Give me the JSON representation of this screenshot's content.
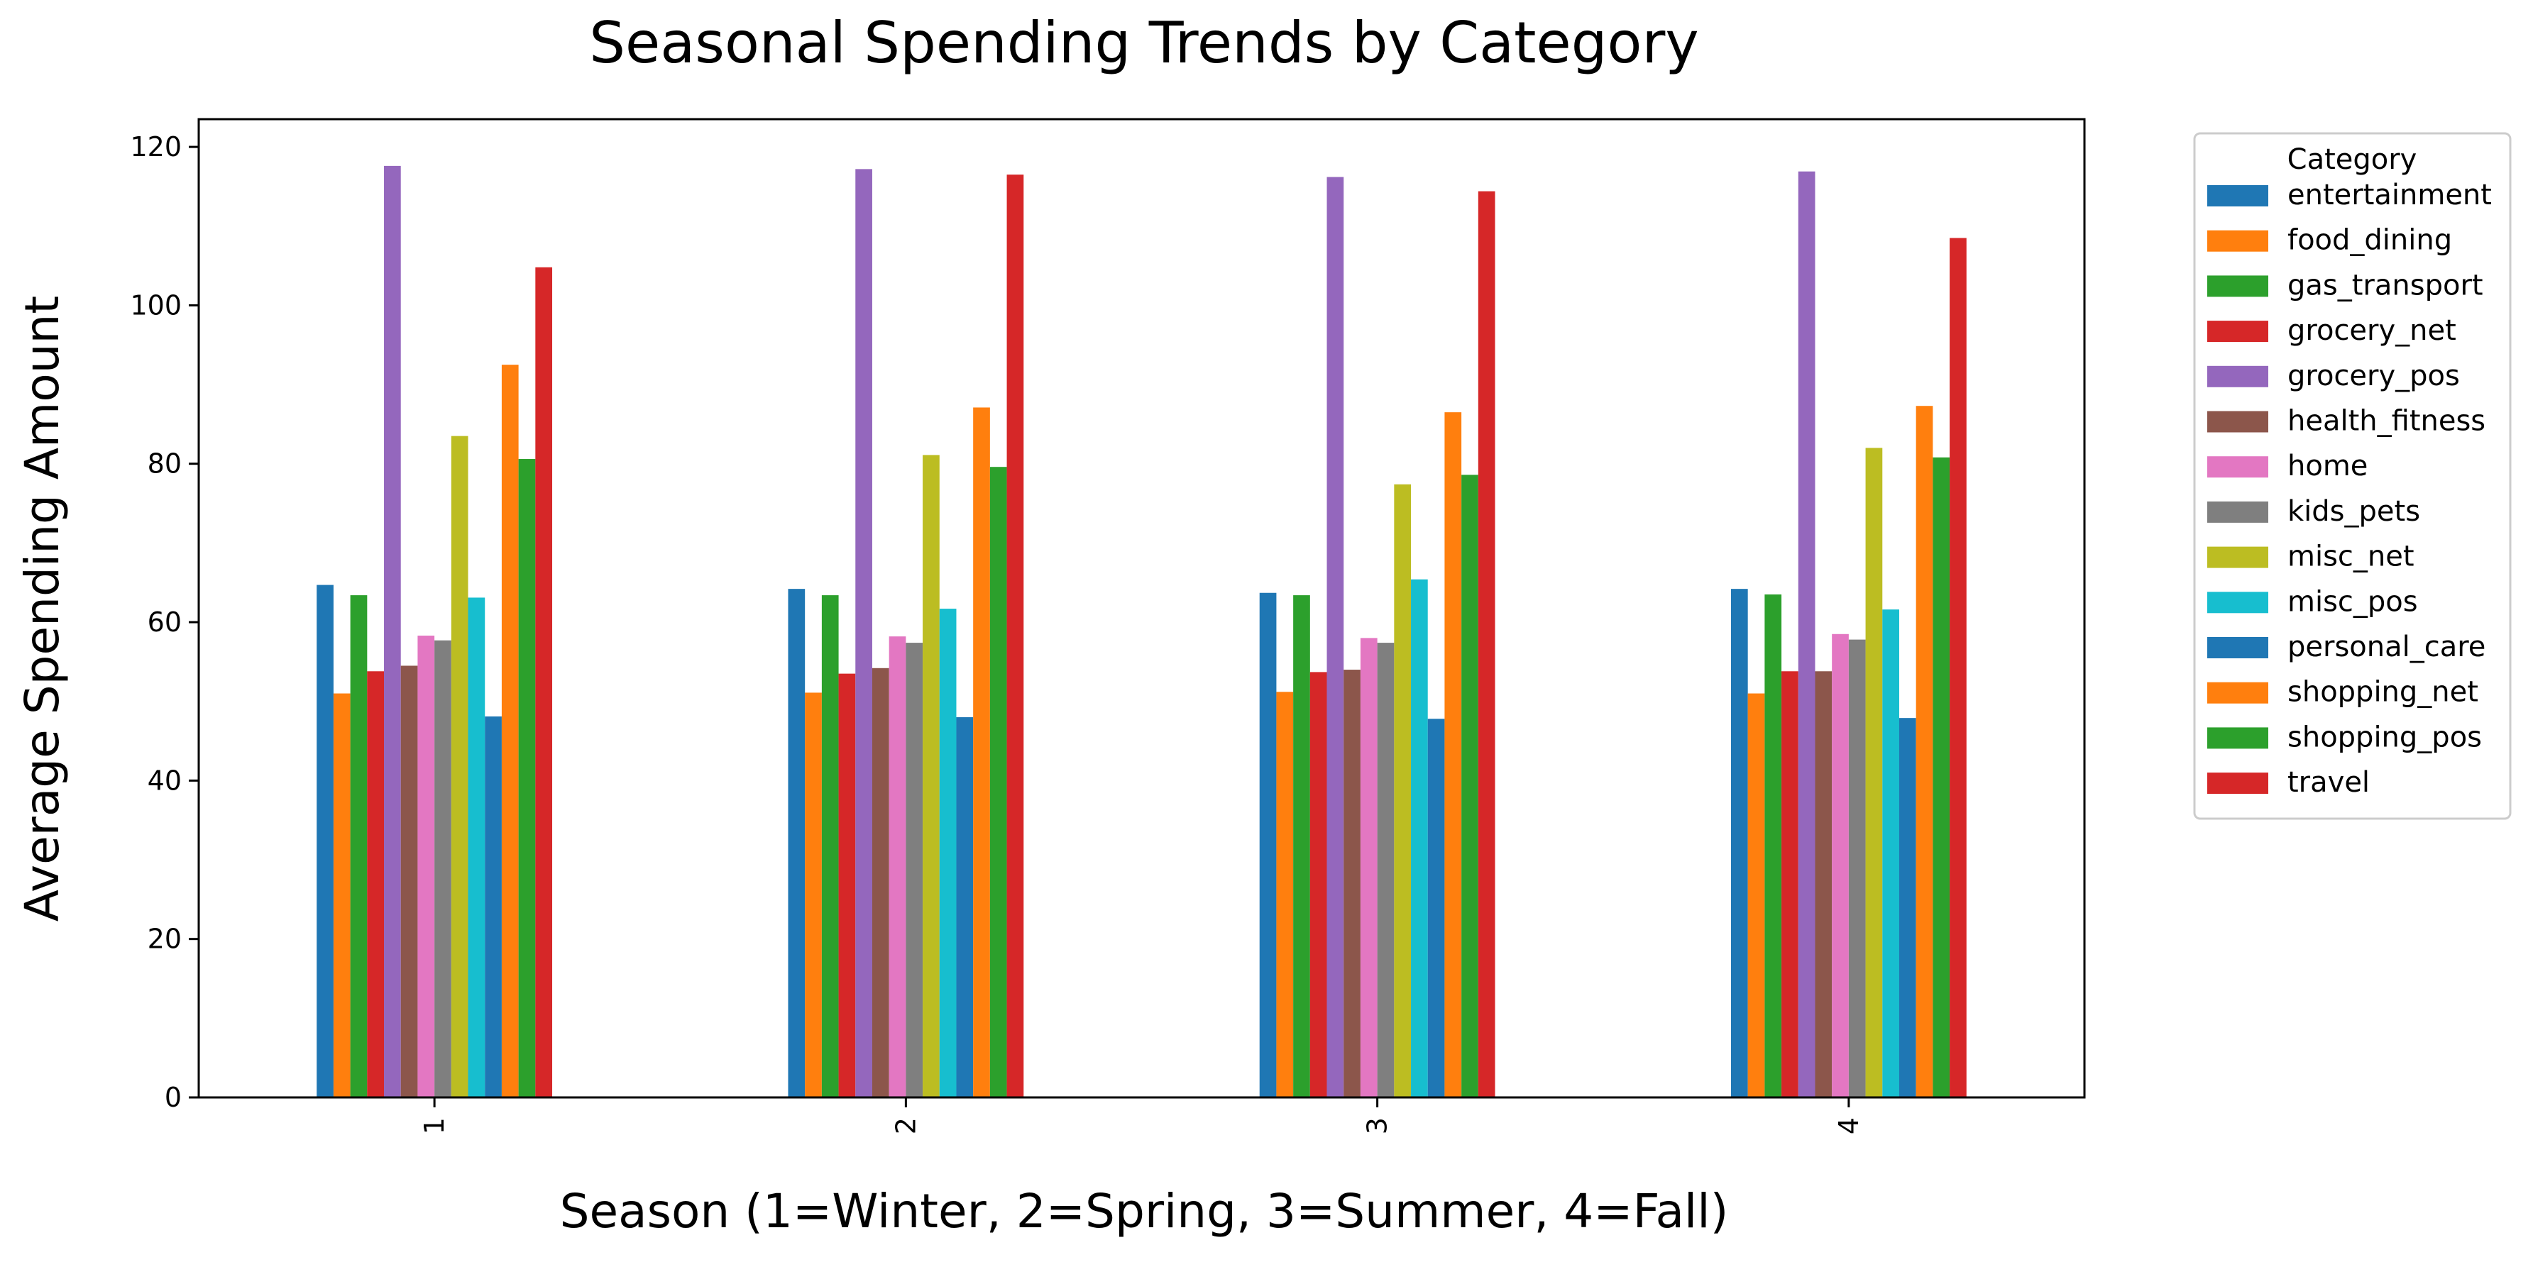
{
  "chart_data": {
    "type": "bar",
    "title": "Seasonal Spending Trends by Category",
    "xlabel": "Season (1=Winter, 2=Spring, 3=Summer, 4=Fall)",
    "ylabel": "Average Spending Amount",
    "categories": [
      "1",
      "2",
      "3",
      "4"
    ],
    "ylim": [
      0,
      123.5
    ],
    "yticks": [
      0,
      20,
      40,
      60,
      80,
      100,
      120
    ],
    "grid": false,
    "legend": {
      "title": "Category",
      "placement": "outside-top-right"
    },
    "series": [
      {
        "name": "entertainment",
        "color": "#1f77b4",
        "values": [
          64.7,
          64.2,
          63.7,
          64.2
        ]
      },
      {
        "name": "food_dining",
        "color": "#ff7f0e",
        "values": [
          51.0,
          51.1,
          51.2,
          51.0
        ]
      },
      {
        "name": "gas_transport",
        "color": "#2ca02c",
        "values": [
          63.4,
          63.4,
          63.4,
          63.5
        ]
      },
      {
        "name": "grocery_net",
        "color": "#d62728",
        "values": [
          53.8,
          53.5,
          53.7,
          53.8
        ]
      },
      {
        "name": "grocery_pos",
        "color": "#9467bd",
        "values": [
          117.6,
          117.2,
          116.2,
          116.9
        ]
      },
      {
        "name": "health_fitness",
        "color": "#8c564b",
        "values": [
          54.5,
          54.2,
          54.0,
          53.8
        ]
      },
      {
        "name": "home",
        "color": "#e377c2",
        "values": [
          58.3,
          58.2,
          58.0,
          58.5
        ]
      },
      {
        "name": "kids_pets",
        "color": "#7f7f7f",
        "values": [
          57.7,
          57.4,
          57.4,
          57.8
        ]
      },
      {
        "name": "misc_net",
        "color": "#bcbd22",
        "values": [
          83.5,
          81.1,
          77.4,
          82.0
        ]
      },
      {
        "name": "misc_pos",
        "color": "#17becf",
        "values": [
          63.1,
          61.7,
          65.4,
          61.6
        ]
      },
      {
        "name": "personal_care",
        "color": "#1f77b4",
        "values": [
          48.1,
          48.0,
          47.8,
          47.9
        ]
      },
      {
        "name": "shopping_net",
        "color": "#ff7f0e",
        "values": [
          92.5,
          87.1,
          86.5,
          87.3
        ]
      },
      {
        "name": "shopping_pos",
        "color": "#2ca02c",
        "values": [
          80.6,
          79.6,
          78.6,
          80.8
        ]
      },
      {
        "name": "travel",
        "color": "#d62728",
        "values": [
          104.8,
          116.5,
          114.4,
          108.5
        ]
      }
    ]
  }
}
